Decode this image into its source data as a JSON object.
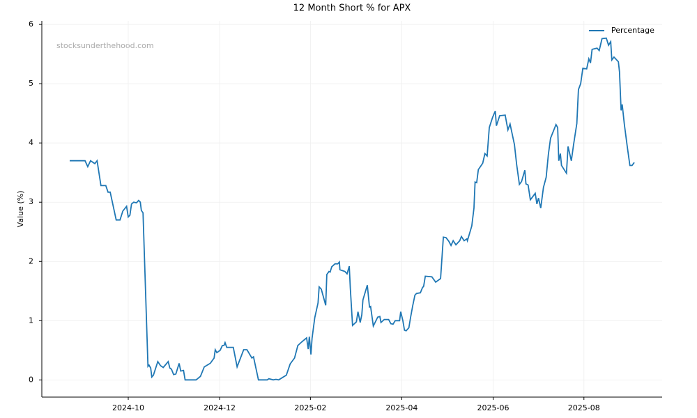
{
  "chart_data": {
    "type": "line",
    "title": "12 Month Short % for APX",
    "ylabel": "Value (%)",
    "watermark": "stocksunderthehood.com",
    "legend": "upper right",
    "grid": true,
    "xlim": [
      2024.592,
      2025.726
    ],
    "ylim": [
      -0.29,
      6.06
    ],
    "xticks": [
      {
        "value": 2024.75,
        "label": "2024-10"
      },
      {
        "value": 2024.917,
        "label": "2024-12"
      },
      {
        "value": 2025.083,
        "label": "2025-02"
      },
      {
        "value": 2025.25,
        "label": "2025-04"
      },
      {
        "value": 2025.417,
        "label": "2025-06"
      },
      {
        "value": 2025.583,
        "label": "2025-08"
      }
    ],
    "yticks": [
      0,
      1,
      2,
      3,
      4,
      5,
      6
    ],
    "x": [
      2024.643,
      2024.671,
      2024.676,
      2024.681,
      2024.689,
      2024.693,
      2024.7,
      2024.709,
      2024.713,
      2024.717,
      2024.728,
      2024.735,
      2024.74,
      2024.747,
      2024.75,
      2024.753,
      2024.756,
      2024.76,
      2024.765,
      2024.769,
      2024.772,
      2024.774,
      2024.777,
      2024.786,
      2024.788,
      2024.791,
      2024.793,
      2024.796,
      2024.804,
      2024.809,
      2024.814,
      2024.823,
      2024.826,
      2024.829,
      2024.833,
      2024.837,
      2024.843,
      2024.846,
      2024.851,
      2024.854,
      2024.874,
      2024.882,
      2024.889,
      2024.9,
      2024.907,
      2024.909,
      2024.912,
      2024.918,
      2024.922,
      2024.925,
      2024.927,
      2024.93,
      2024.942,
      2024.949,
      2024.961,
      2024.967,
      2024.976,
      2024.979,
      2024.988,
      2025.004,
      2025.007,
      2025.015,
      2025.02,
      2025.025,
      2025.03,
      2025.039,
      2025.046,
      2025.054,
      2025.06,
      2025.067,
      2025.076,
      2025.079,
      2025.081,
      2025.084,
      2025.086,
      2025.091,
      2025.097,
      2025.099,
      2025.103,
      2025.111,
      2025.113,
      2025.117,
      2025.119,
      2025.122,
      2025.128,
      2025.133,
      2025.136,
      2025.137,
      2025.146,
      2025.15,
      2025.154,
      2025.156,
      2025.16,
      2025.167,
      2025.17,
      2025.174,
      2025.177,
      2025.179,
      2025.187,
      2025.191,
      2025.193,
      2025.198,
      2025.206,
      2025.21,
      2025.212,
      2025.218,
      2025.226,
      2025.23,
      2025.234,
      2025.238,
      2025.246,
      2025.248,
      2025.252,
      2025.255,
      2025.258,
      2025.263,
      2025.266,
      2025.27,
      2025.274,
      2025.277,
      2025.284,
      2025.288,
      2025.29,
      2025.293,
      2025.305,
      2025.312,
      2025.321,
      2025.326,
      2025.331,
      2025.336,
      2025.34,
      2025.344,
      2025.349,
      2025.356,
      2025.359,
      2025.364,
      2025.369,
      2025.37,
      2025.378,
      2025.382,
      2025.384,
      2025.387,
      2025.39,
      2025.396,
      2025.398,
      2025.402,
      2025.406,
      2025.41,
      2025.416,
      2025.421,
      2025.423,
      2025.429,
      2025.439,
      2025.444,
      2025.448,
      2025.456,
      2025.46,
      2025.465,
      2025.469,
      2025.475,
      2025.477,
      2025.481,
      2025.485,
      2025.49,
      2025.494,
      2025.497,
      2025.5,
      2025.504,
      2025.509,
      2025.514,
      2025.518,
      2025.522,
      2025.532,
      2025.535,
      2025.537,
      2025.54,
      2025.542,
      2025.551,
      2025.554,
      2025.56,
      2025.564,
      2025.57,
      2025.573,
      2025.577,
      2025.581,
      2025.588,
      2025.592,
      2025.595,
      2025.598,
      2025.607,
      2025.611,
      2025.616,
      2025.624,
      2025.628,
      2025.632,
      2025.634,
      2025.638,
      2025.646,
      2025.648,
      2025.651,
      2025.653,
      2025.657,
      2025.662,
      2025.667,
      2025.671,
      2025.675
    ],
    "series": [
      {
        "name": "Percentage",
        "color": "#1f77b4",
        "values": [
          3.7,
          3.7,
          3.6,
          3.7,
          3.65,
          3.7,
          3.28,
          3.28,
          3.17,
          3.17,
          2.7,
          2.7,
          2.85,
          2.93,
          2.75,
          2.78,
          2.97,
          3.0,
          2.99,
          3.03,
          3.0,
          2.86,
          2.82,
          0.23,
          0.25,
          0.2,
          0.05,
          0.08,
          0.31,
          0.24,
          0.21,
          0.31,
          0.2,
          0.18,
          0.09,
          0.1,
          0.28,
          0.15,
          0.16,
          0.0,
          0.0,
          0.06,
          0.22,
          0.28,
          0.37,
          0.51,
          0.46,
          0.5,
          0.58,
          0.58,
          0.63,
          0.55,
          0.55,
          0.22,
          0.51,
          0.51,
          0.37,
          0.39,
          0.0,
          0.0,
          0.02,
          0.0,
          0.01,
          0.0,
          0.03,
          0.08,
          0.27,
          0.37,
          0.58,
          0.64,
          0.71,
          0.52,
          0.73,
          0.43,
          0.7,
          1.05,
          1.3,
          1.57,
          1.53,
          1.26,
          1.78,
          1.83,
          1.82,
          1.91,
          1.96,
          1.96,
          1.99,
          1.86,
          1.83,
          1.79,
          1.92,
          1.55,
          0.92,
          0.98,
          1.15,
          0.97,
          1.1,
          1.35,
          1.6,
          1.23,
          1.24,
          0.91,
          1.06,
          1.07,
          0.97,
          1.02,
          1.02,
          0.95,
          0.94,
          1.0,
          1.0,
          1.15,
          1.0,
          0.84,
          0.83,
          0.88,
          1.05,
          1.25,
          1.43,
          1.46,
          1.47,
          1.56,
          1.58,
          1.75,
          1.74,
          1.65,
          1.71,
          2.41,
          2.4,
          2.34,
          2.27,
          2.35,
          2.28,
          2.35,
          2.42,
          2.35,
          2.38,
          2.35,
          2.6,
          2.9,
          3.34,
          3.33,
          3.55,
          3.63,
          3.66,
          3.82,
          3.78,
          4.26,
          4.43,
          4.54,
          4.29,
          4.46,
          4.47,
          4.22,
          4.32,
          3.97,
          3.64,
          3.3,
          3.35,
          3.54,
          3.31,
          3.29,
          3.04,
          3.1,
          3.15,
          2.97,
          3.07,
          2.9,
          3.25,
          3.42,
          3.81,
          4.08,
          4.31,
          4.26,
          3.7,
          3.82,
          3.62,
          3.49,
          3.94,
          3.7,
          3.97,
          4.33,
          4.9,
          5.0,
          5.26,
          5.25,
          5.42,
          5.35,
          5.58,
          5.6,
          5.56,
          5.76,
          5.77,
          5.65,
          5.71,
          5.4,
          5.45,
          5.37,
          5.2,
          4.55,
          4.65,
          4.31,
          3.95,
          3.62,
          3.62,
          3.67
        ]
      }
    ]
  }
}
